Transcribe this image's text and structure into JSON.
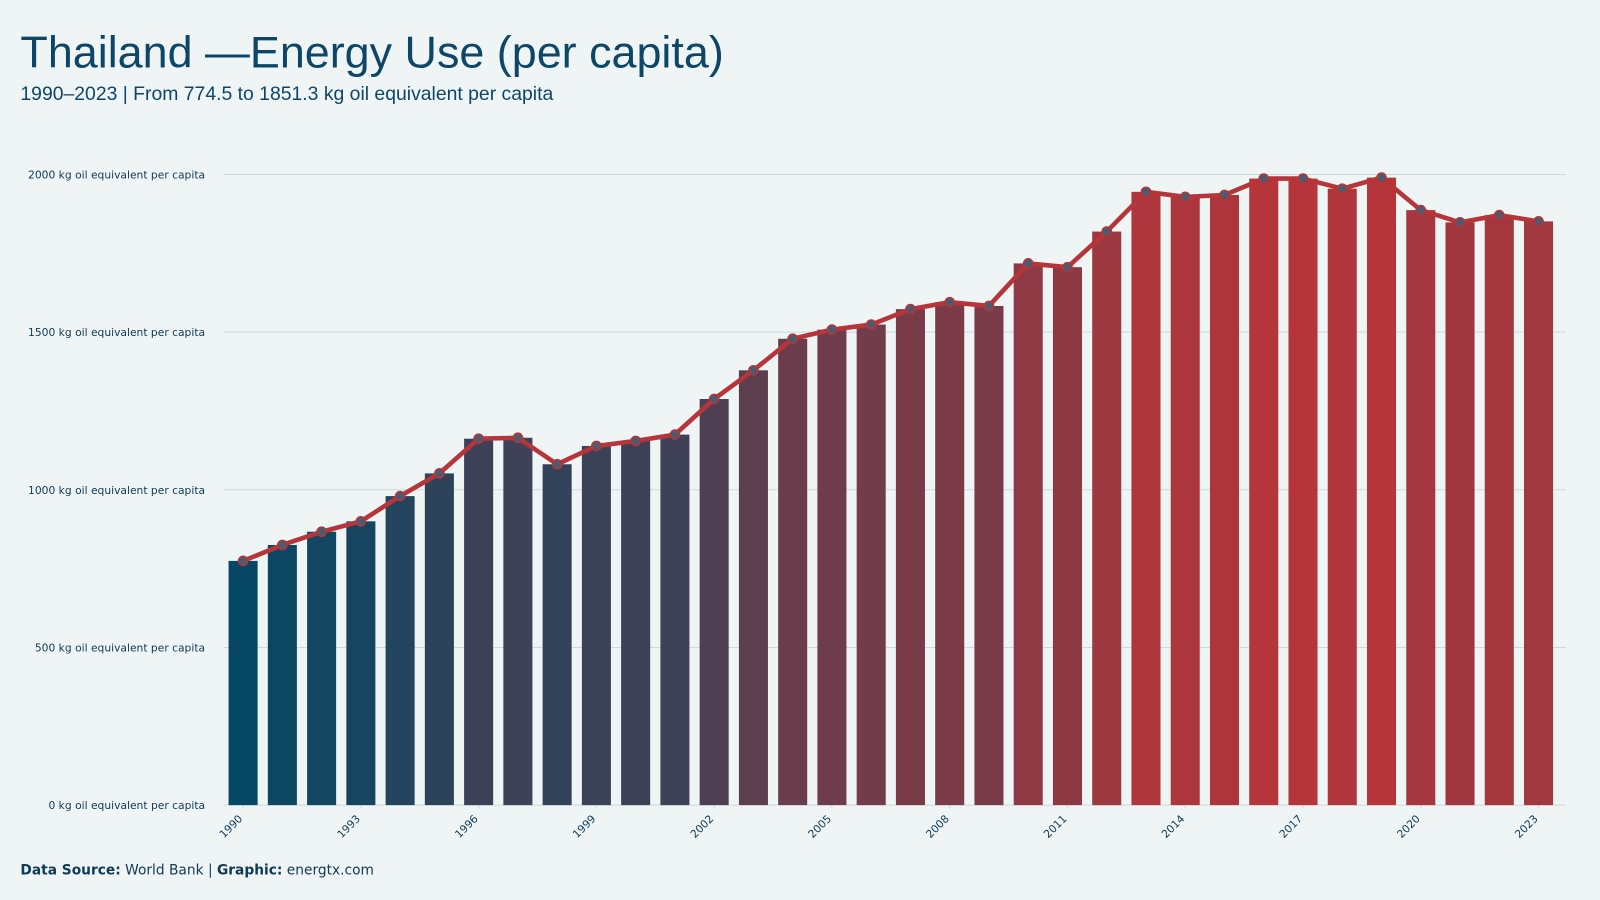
{
  "chart_data": {
    "type": "bar_line",
    "title": "Thailand —Energy Use (per capita)",
    "subtitle": "1990–2023 | From 774.5 to 1851.3  kg oil equivalent per capita",
    "x": [
      1990,
      1991,
      1992,
      1993,
      1994,
      1995,
      1996,
      1997,
      1998,
      1999,
      2000,
      2001,
      2002,
      2003,
      2004,
      2005,
      2006,
      2007,
      2008,
      2009,
      2010,
      2011,
      2012,
      2013,
      2014,
      2015,
      2016,
      2017,
      2018,
      2019,
      2020,
      2021,
      2022,
      2023
    ],
    "values": [
      774.5,
      825,
      867,
      900,
      980,
      1052,
      1162,
      1165,
      1081,
      1139,
      1155,
      1175,
      1288,
      1379,
      1479,
      1508,
      1524,
      1573,
      1595,
      1583,
      1718,
      1706,
      1819,
      1945,
      1929,
      1935,
      1987,
      1987,
      1955,
      1990,
      1887,
      1848,
      1871,
      1851.3
    ],
    "xlim": [
      1989.5,
      2023.5
    ],
    "xticks": [
      1990,
      1993,
      1996,
      1999,
      2002,
      2005,
      2008,
      2011,
      2014,
      2017,
      2020,
      2023
    ],
    "ylim": [
      0,
      2000
    ],
    "yticks": [
      {
        "value": 0,
        "label": "0 kg oil equivalent per capita"
      },
      {
        "value": 500,
        "label": "500 kg oil equivalent per capita"
      },
      {
        "value": 1000,
        "label": "1000 kg oil equivalent per capita"
      },
      {
        "value": 1500,
        "label": "1500 kg oil equivalent per capita"
      },
      {
        "value": 2000,
        "label": "2000 kg oil equivalent per capita"
      }
    ],
    "grid": true,
    "bar_colors": [
      "#054764",
      "#b5353a"
    ],
    "line_color": "#b5353a",
    "marker_color": "#4e5a6e",
    "source_label": "Data  Source:",
    "source": "World Bank",
    "separator": "|",
    "graphic_label": "Graphic:",
    "graphic": "energtx.com"
  }
}
